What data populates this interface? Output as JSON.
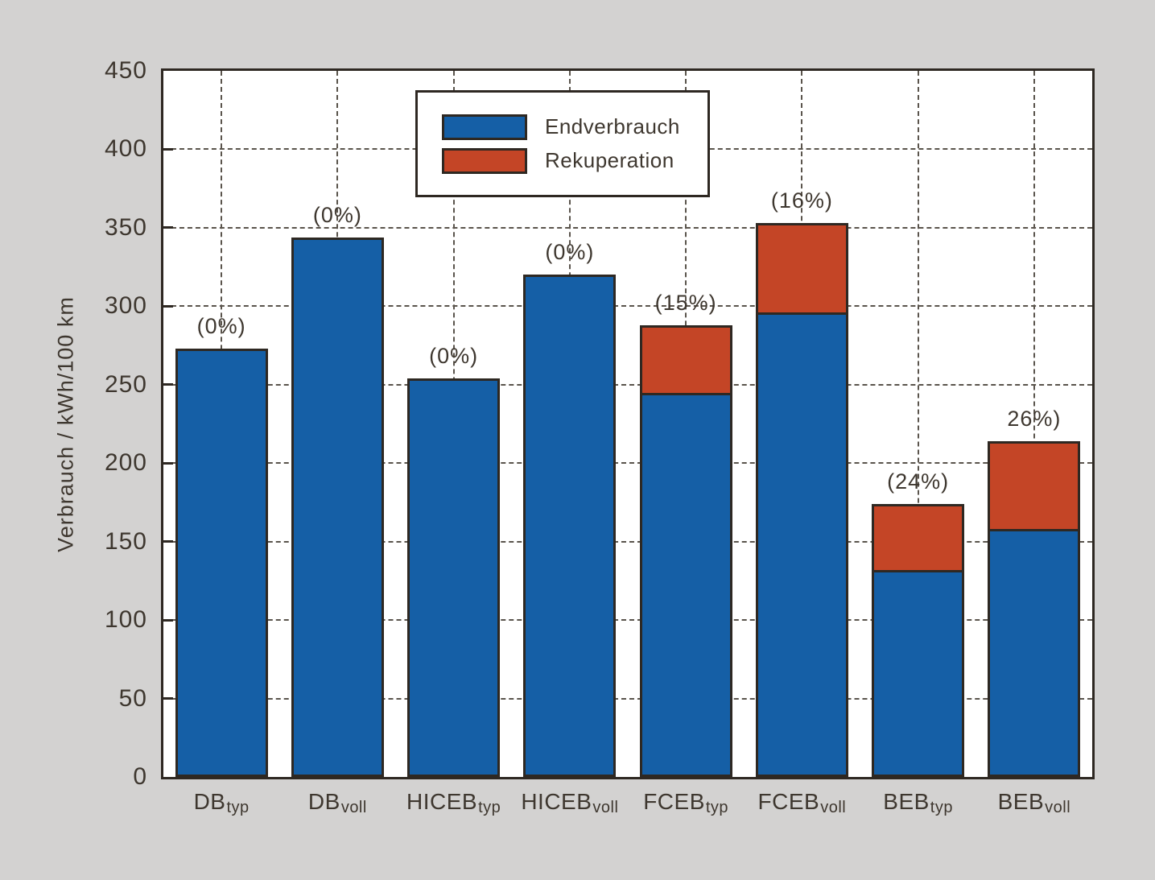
{
  "colors": {
    "background": "#d3d2d1",
    "plot_background": "#ffffff",
    "frame": "#2e2822",
    "grid": "#5a544c",
    "text": "#3e372f",
    "endverbrauch_blue": "#155fa6",
    "rekuperation_red": "#c44526"
  },
  "y_axis": {
    "title": "Verbrauch / kWh/100 km",
    "ticks": [
      0,
      50,
      100,
      150,
      200,
      250,
      300,
      350,
      400,
      450
    ],
    "max": 450
  },
  "legend": {
    "items": [
      {
        "label": "Endverbrauch",
        "color": "#155fa6"
      },
      {
        "label": "Rekuperation",
        "color": "#c44526"
      }
    ]
  },
  "chart_data": {
    "type": "bar",
    "stacked": true,
    "title": "",
    "xlabel": "",
    "ylabel": "Verbrauch / kWh/100 km",
    "ylim": [
      0,
      450
    ],
    "grid": "dashed, horizontal and vertical",
    "legend_position": "upper left inside plot",
    "categories": [
      {
        "main": "DB",
        "sub": "typ"
      },
      {
        "main": "DB",
        "sub": "voll"
      },
      {
        "main": "HICEB",
        "sub": "typ"
      },
      {
        "main": "HICEB",
        "sub": "voll"
      },
      {
        "main": "FCEB",
        "sub": "typ"
      },
      {
        "main": "FCEB",
        "sub": "voll"
      },
      {
        "main": "BEB",
        "sub": "typ"
      },
      {
        "main": "BEB",
        "sub": "voll"
      }
    ],
    "series": [
      {
        "name": "Endverbrauch",
        "color": "#155fa6",
        "values": [
          273,
          344,
          254,
          320,
          245,
          296,
          132,
          158
        ]
      },
      {
        "name": "Rekuperation",
        "color": "#c44526",
        "values": [
          0,
          0,
          0,
          0,
          43,
          57,
          42,
          56
        ]
      }
    ],
    "totals": [
      273,
      344,
      254,
      320,
      288,
      353,
      174,
      214
    ],
    "annotations": [
      "(0%)",
      "(0%)",
      "(0%)",
      "(0%)",
      "(15%)",
      "(16%)",
      "(24%)",
      "26%)"
    ]
  }
}
